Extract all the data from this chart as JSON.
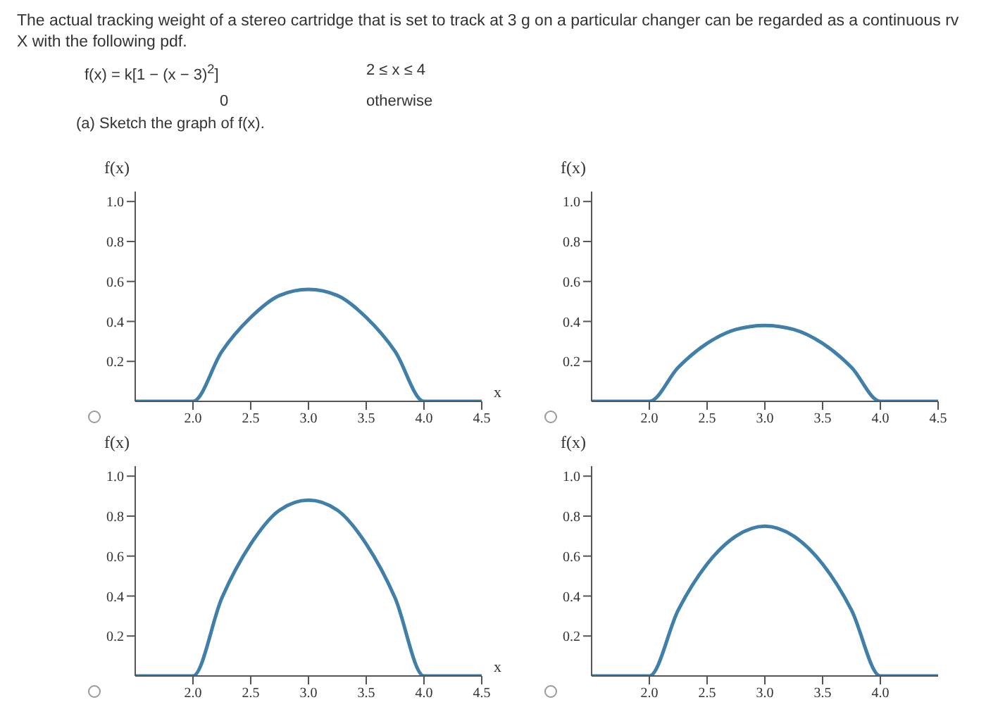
{
  "chart_data": [
    {
      "type": "line",
      "title": "The actual tracking weight of a stereo cartridge that is set to track at 3 g on a particular changer can be regarded as a continuous rv X with the following pdf.",
      "annotations": [
        "f(x) = k[1 − (x − 3)$^{2}$]",
        "2 ≤ x ≤ 4",
        "0",
        "otherwise",
        "(a) Sketch the graph of f(x)."
      ],
      "xlabel": "x",
      "ylabel": "f(x)",
      "x": [
        1.5,
        2.0,
        2.25,
        2.5,
        2.75,
        3.0,
        3.25,
        3.5,
        3.75,
        4.0,
        4.5
      ],
      "series": [
        {
          "color": "#3f7fa8",
          "values": [
            0,
            0,
            0.25,
            0.42,
            0.53,
            0.56,
            0.53,
            0.42,
            0.25,
            0,
            0
          ]
        }
      ],
      "xlim": [
        1.5,
        4.5
      ],
      "xticks": [
        {
          "value": 2,
          "label": "2.0"
        },
        {
          "value": 2.5,
          "label": "2.5"
        },
        {
          "value": 3,
          "label": "3.0"
        },
        {
          "value": 3.5,
          "label": "3.5"
        },
        {
          "value": 4,
          "label": "4.0"
        },
        {
          "value": 4.5,
          "label": "4.5"
        }
      ],
      "ylim": [
        0,
        1.05
      ],
      "yticks": [
        {
          "value": 0.2,
          "label": "0.2"
        },
        {
          "value": 0.4,
          "label": "0.4"
        },
        {
          "value": 0.6,
          "label": "0.6"
        },
        {
          "value": 0.8,
          "label": "0.8"
        },
        {
          "value": 1,
          "label": "1.0"
        }
      ],
      "grid": false,
      "legend": false,
      "marker": "none"
    },
    {
      "type": "line",
      "ylabel": "f(x)",
      "x": [
        1.5,
        2.0,
        2.25,
        2.5,
        2.75,
        3.0,
        3.25,
        3.5,
        3.75,
        4.0,
        4.5
      ],
      "series": [
        {
          "color": "#3f7fa8",
          "values": [
            0,
            0,
            0.17,
            0.29,
            0.36,
            0.38,
            0.36,
            0.29,
            0.17,
            0,
            0
          ]
        }
      ],
      "xlim": [
        1.5,
        4.5
      ],
      "xticks": [
        {
          "value": 2,
          "label": "2.0"
        },
        {
          "value": 2.5,
          "label": "2.5"
        },
        {
          "value": 3,
          "label": "3.0"
        },
        {
          "value": 3.5,
          "label": "3.5"
        },
        {
          "value": 4,
          "label": "4.0"
        },
        {
          "value": 4.5,
          "label": "4.5"
        }
      ],
      "ylim": [
        0,
        1.05
      ],
      "yticks": [
        {
          "value": 0.2,
          "label": "0.2"
        },
        {
          "value": 0.4,
          "label": "0.4"
        },
        {
          "value": 0.6,
          "label": "0.6"
        },
        {
          "value": 0.8,
          "label": "0.8"
        },
        {
          "value": 1,
          "label": "1.0"
        }
      ],
      "grid": false,
      "legend": false,
      "marker": "none"
    },
    {
      "type": "line",
      "xlabel": "x",
      "ylabel": "f(x)",
      "x": [
        1.5,
        2.0,
        2.25,
        2.5,
        2.75,
        3.0,
        3.25,
        3.5,
        3.75,
        4.0,
        4.5
      ],
      "series": [
        {
          "color": "#3f7fa8",
          "values": [
            0,
            0,
            0.39,
            0.66,
            0.83,
            0.88,
            0.83,
            0.66,
            0.39,
            0,
            0
          ]
        }
      ],
      "xlim": [
        1.5,
        4.5
      ],
      "xticks": [
        {
          "value": 2,
          "label": "2.0"
        },
        {
          "value": 2.5,
          "label": "2.5"
        },
        {
          "value": 3,
          "label": "3.0"
        },
        {
          "value": 3.5,
          "label": "3.5"
        },
        {
          "value": 4,
          "label": "4.0"
        },
        {
          "value": 4.5,
          "label": "4.5"
        }
      ],
      "ylim": [
        0,
        1.05
      ],
      "yticks": [
        {
          "value": 0.2,
          "label": "0.2"
        },
        {
          "value": 0.4,
          "label": "0.4"
        },
        {
          "value": 0.6,
          "label": "0.6"
        },
        {
          "value": 0.8,
          "label": "0.8"
        },
        {
          "value": 1,
          "label": "1.0"
        }
      ],
      "grid": false,
      "legend": false,
      "marker": "none"
    },
    {
      "type": "line",
      "ylabel": "f(x)",
      "x": [
        1.5,
        2.0,
        2.25,
        2.5,
        2.75,
        3.0,
        3.25,
        3.5,
        3.75,
        4.0,
        4.5
      ],
      "series": [
        {
          "color": "#3f7fa8",
          "values": [
            0,
            0,
            0.33,
            0.56,
            0.7,
            0.75,
            0.7,
            0.56,
            0.33,
            0,
            0
          ]
        }
      ],
      "xlim": [
        1.5,
        4.5
      ],
      "xticks": [
        {
          "value": 2,
          "label": "2.0"
        },
        {
          "value": 2.5,
          "label": "2.5"
        },
        {
          "value": 3,
          "label": "3.0"
        },
        {
          "value": 3.5,
          "label": "3.5"
        },
        {
          "value": 4,
          "label": "4.0"
        }
      ],
      "ylim": [
        0,
        1.05
      ],
      "yticks": [
        {
          "value": 0.2,
          "label": "0.2"
        },
        {
          "value": 0.4,
          "label": "0.4"
        },
        {
          "value": 0.6,
          "label": "0.6"
        },
        {
          "value": 0.8,
          "label": "0.8"
        },
        {
          "value": 1,
          "label": "1.0"
        }
      ],
      "grid": false,
      "legend": false,
      "marker": "none"
    }
  ]
}
